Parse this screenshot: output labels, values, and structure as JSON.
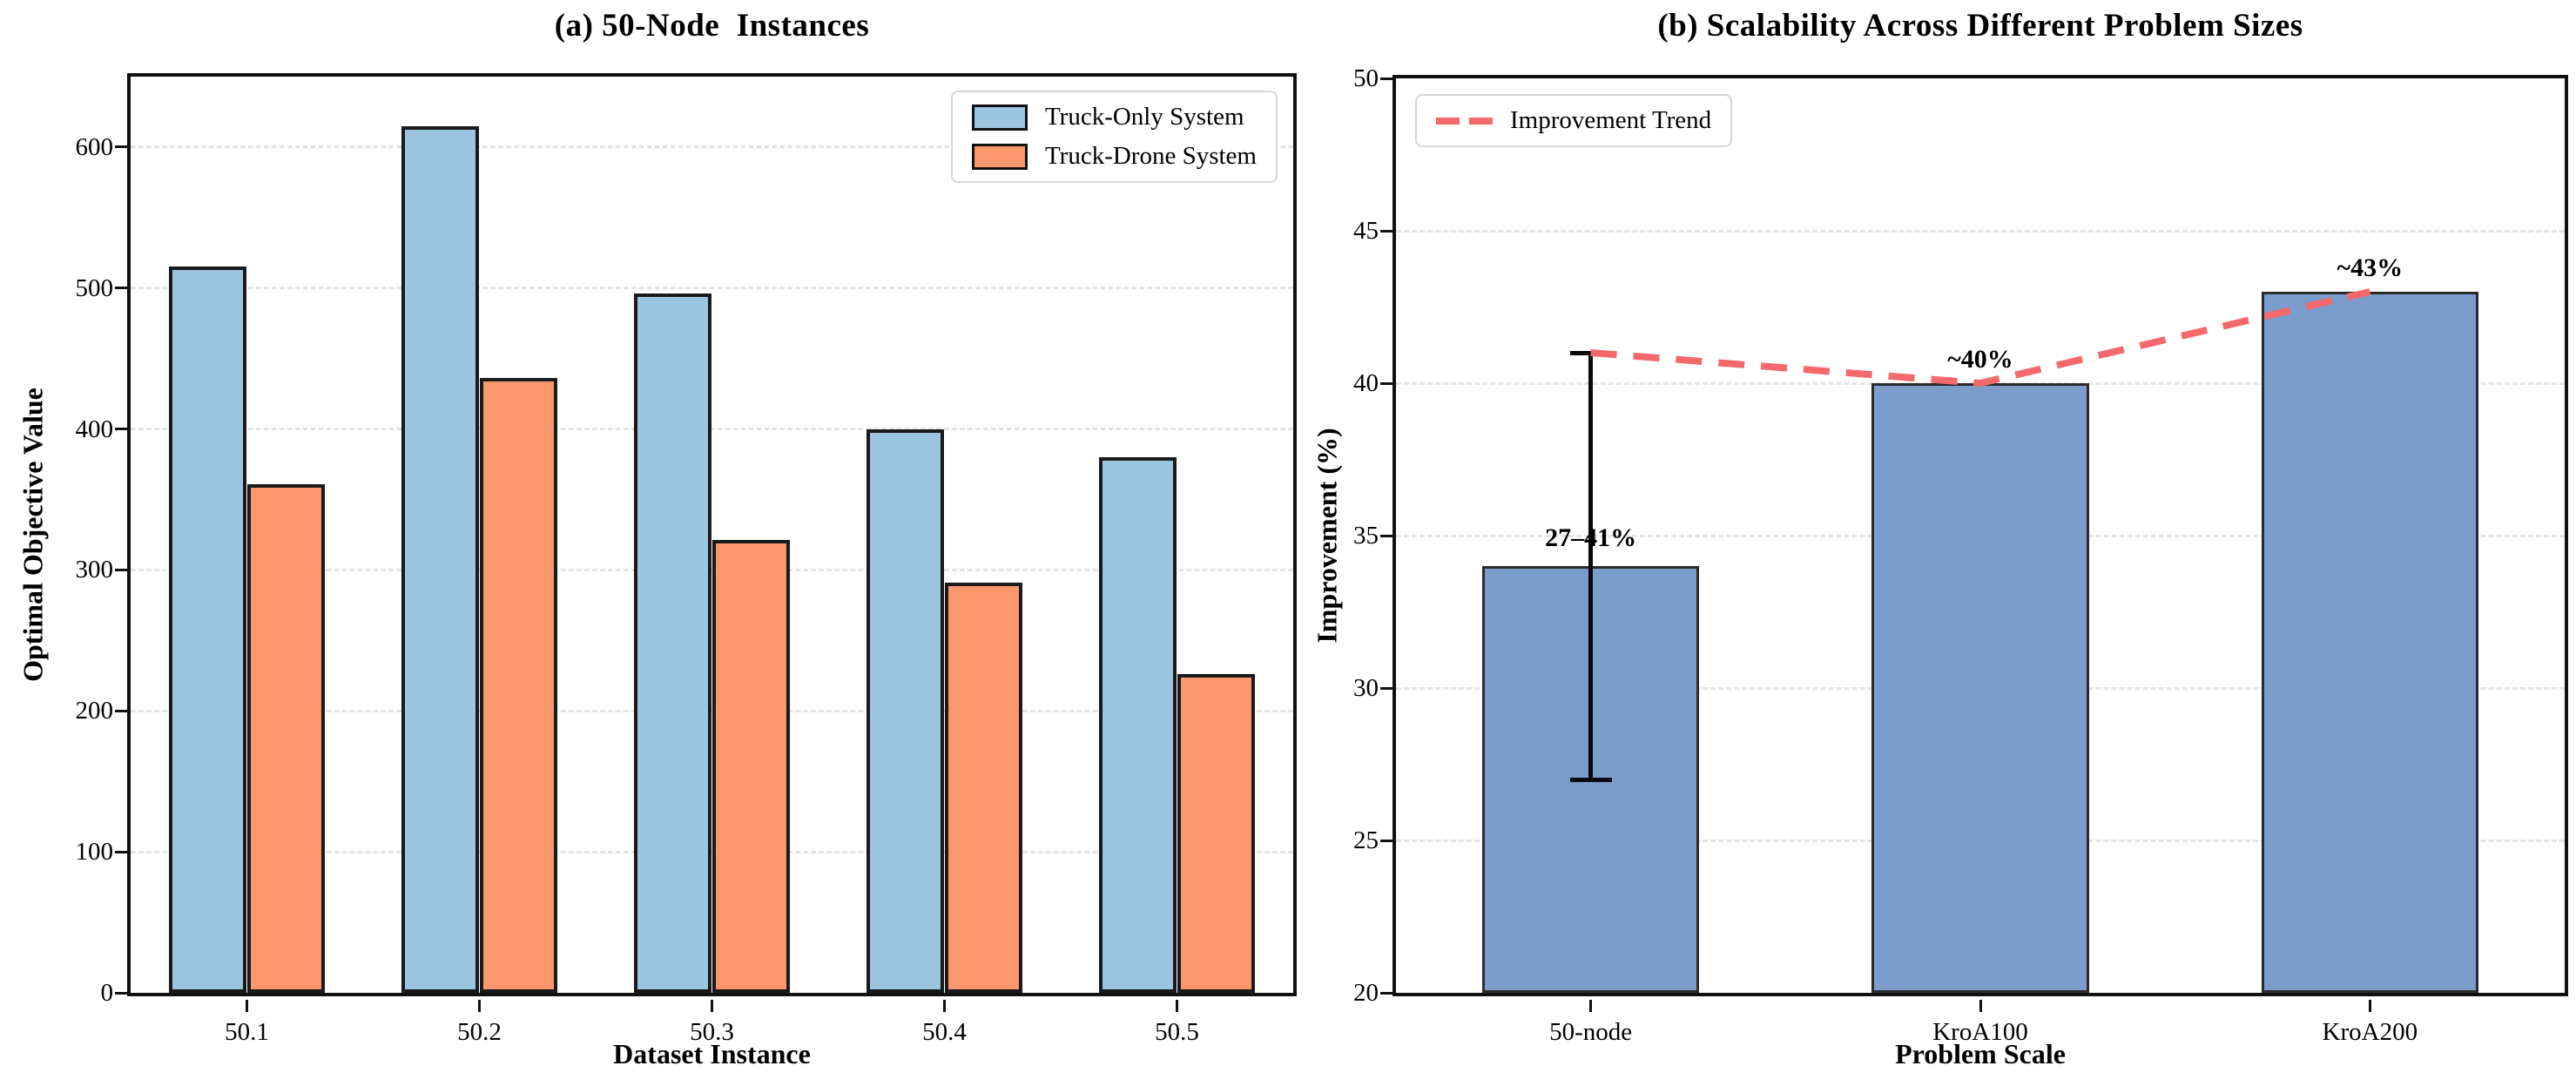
{
  "figure_background": "#ffffff",
  "chart_data": [
    {
      "type": "bar",
      "panel": "a",
      "title": "(a) 50-Node  Instances",
      "xlabel": "Dataset Instance",
      "ylabel": "Optimal Objective Value",
      "categories": [
        "50.1",
        "50.2",
        "50.3",
        "50.4",
        "50.5"
      ],
      "series": [
        {
          "name": "Truck-Only System",
          "color": "#9CC5E1",
          "values": [
            515,
            615,
            496,
            400,
            380
          ]
        },
        {
          "name": "Truck-Drone System",
          "color": "#FA976C",
          "values": [
            361,
            436,
            321,
            291,
            226
          ]
        }
      ],
      "ylim": [
        0,
        650
      ],
      "yticks": [
        0,
        100,
        200,
        300,
        400,
        500,
        600
      ],
      "grid": "horizontal-dashed",
      "legend": {
        "position": "top-right",
        "entries": [
          "Truck-Only System",
          "Truck-Drone System"
        ]
      }
    },
    {
      "type": "bar-with-trend",
      "panel": "b",
      "title": "(b) Scalability Across Different Problem Sizes",
      "xlabel": "Problem Scale",
      "ylabel": "Improvement (%)",
      "categories": [
        "50-node",
        "KroA100",
        "KroA200"
      ],
      "values": [
        34,
        40,
        43
      ],
      "bar_color": "#7A9DCB",
      "bar_edge_color": "#2b2b2b",
      "error_bar": {
        "category_index": 0,
        "low": 27,
        "high": 41,
        "color": "#0a0a0a"
      },
      "trend": {
        "name": "Improvement Trend",
        "color": "#F4696B",
        "style": "dashed",
        "values": [
          41,
          40,
          43
        ]
      },
      "annotations": [
        {
          "text": "27–41%",
          "category_index": 0,
          "y": 34.4
        },
        {
          "text": "~40%",
          "category_index": 1,
          "y": 40.25
        },
        {
          "text": "~43%",
          "category_index": 2,
          "y": 43.25
        }
      ],
      "ylim": [
        20,
        50
      ],
      "yticks": [
        20,
        25,
        30,
        35,
        40,
        45,
        50
      ],
      "grid": "horizontal-dashed",
      "legend": {
        "position": "top-left",
        "entries": [
          "Improvement Trend"
        ]
      }
    }
  ],
  "colors": {
    "truck_only": "#9CC5E1",
    "truck_drone": "#FA976C",
    "scalability_bar": "#7A9DCB",
    "trend_line": "#F4696B",
    "gridline": "#e4e4e4",
    "spine": "#111111"
  }
}
